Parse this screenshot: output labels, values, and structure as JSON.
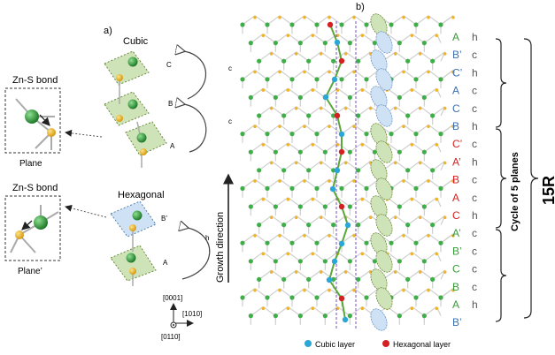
{
  "panel_a": {
    "label": "a)",
    "cubic_title": "Cubic",
    "hexagonal_title": "Hexagonal",
    "bond_title_top": "Zn-S bond",
    "plane_top": "Plane",
    "bond_title_bottom": "Zn-S bond",
    "plane_bottom": "Plane’",
    "site_labels": [
      "C",
      "B",
      "A",
      "B’",
      "A"
    ],
    "arc_labels": [
      "c",
      "c",
      "h"
    ],
    "axes": {
      "up": "[0001]",
      "right": "[1010]",
      "out": "[0110]"
    }
  },
  "panel_b": {
    "label": "b)",
    "growth_direction": "Growth direction",
    "stack_letters": [
      "A",
      "B’",
      "C’",
      "A",
      "C",
      "B",
      "C’",
      "A’",
      "B",
      "A",
      "C",
      "A’",
      "B’",
      "C",
      "B",
      "A",
      "B’"
    ],
    "stack_colors": [
      "green",
      "blue",
      "blue",
      "blue",
      "blue",
      "blue",
      "red",
      "red",
      "red",
      "red",
      "red",
      "green",
      "green",
      "green",
      "green",
      "green",
      "blue"
    ],
    "stack_types": [
      "h",
      "c",
      "h",
      "c",
      "c",
      "h",
      "c",
      "h",
      "c",
      "c",
      "h",
      "c",
      "c",
      "c",
      "c",
      "h",
      ""
    ],
    "cycle_label": "Cycle of 5 planes",
    "polytype": "15R",
    "legend": [
      {
        "label": "Cubic layer",
        "color": "#2aa7d6"
      },
      {
        "label": "Hexagonal layer",
        "color": "#d42020"
      }
    ]
  },
  "colors": {
    "zn": "#3fae49",
    "s": "#f0b428",
    "bond": "#c9c9c9",
    "green_plane": "#cfe3b8",
    "blue_plane": "#cfe2f5",
    "green_letter": "#3a9a3a",
    "blue_letter": "#3b6fb0",
    "red_letter": "#d42020"
  }
}
